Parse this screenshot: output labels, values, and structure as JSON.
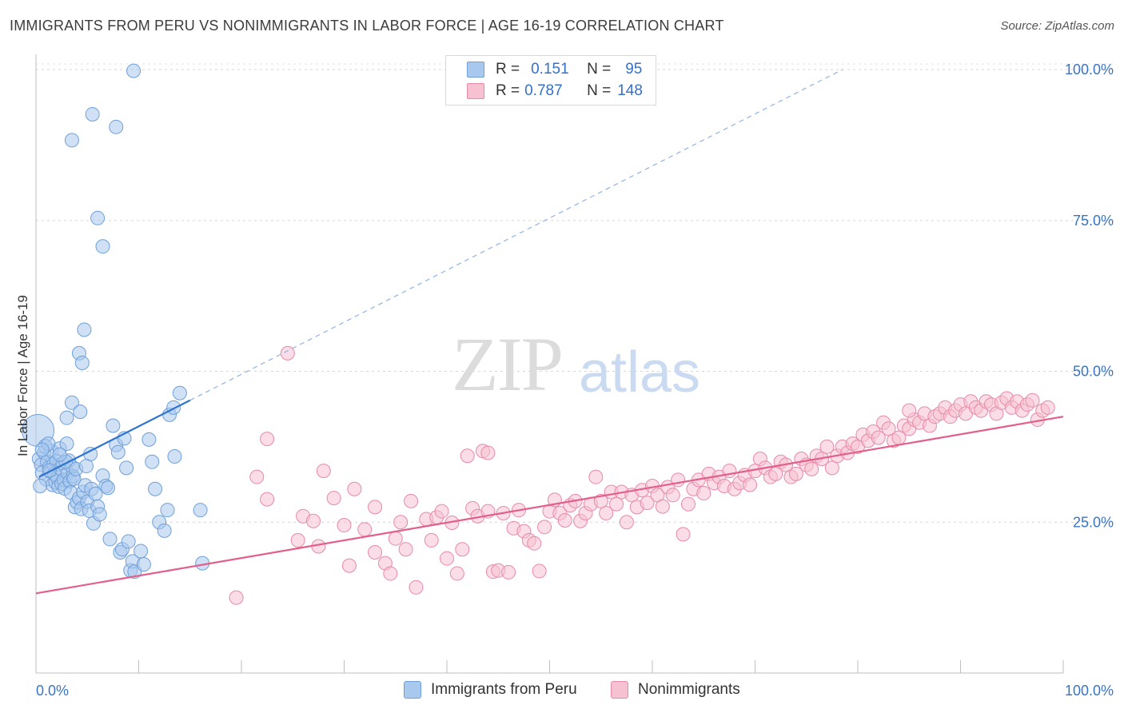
{
  "title": "IMMIGRANTS FROM PERU VS NONIMMIGRANTS IN LABOR FORCE | AGE 16-19 CORRELATION CHART",
  "source": "Source: ZipAtlas.com",
  "watermark": {
    "zip": "ZIP",
    "atlas": "atlas"
  },
  "stats": {
    "r_label": "R =",
    "n_label": "N =",
    "series1": {
      "r": "0.151",
      "n": "95"
    },
    "series2": {
      "r": "0.787",
      "n": "148"
    }
  },
  "legend": {
    "series1": "Immigrants from Peru",
    "series2": "Nonimmigrants"
  },
  "colors": {
    "series1_fill": "#a9c8ee",
    "series1_stroke": "#6fa0d8",
    "series1_line": "#2f74cf",
    "series2_fill": "#f6c1d1",
    "series2_stroke": "#e88aa8",
    "series2_line": "#e25f8a",
    "tick_label": "#3a74c4"
  },
  "chart_data": {
    "type": "scatter",
    "title": "IMMIGRANTS FROM PERU VS NONIMMIGRANTS IN LABOR FORCE | AGE 16-19 CORRELATION CHART",
    "xlabel": "",
    "ylabel": "In Labor Force | Age 16-19",
    "xlim": [
      0,
      100
    ],
    "ylim": [
      0,
      102
    ],
    "x_tick_labels": [
      "0.0%",
      "100.0%"
    ],
    "y_ticks": [
      25,
      50,
      75,
      100
    ],
    "y_tick_labels": [
      "25.0%",
      "50.0%",
      "75.0%",
      "100.0%"
    ],
    "grid": true,
    "legend_position": "bottom-center",
    "series": [
      {
        "name": "Immigrants from Peru",
        "points": [
          [
            0.3,
            35.5
          ],
          [
            0.5,
            34.5
          ],
          [
            0.6,
            33.2
          ],
          [
            0.8,
            36.5
          ],
          [
            1.0,
            32.1
          ],
          [
            1.1,
            35.0
          ],
          [
            1.3,
            34.1
          ],
          [
            1.4,
            33.4
          ],
          [
            1.5,
            36.8
          ],
          [
            1.6,
            31.2
          ],
          [
            1.7,
            34.6
          ],
          [
            1.8,
            33.0
          ],
          [
            1.9,
            31.6
          ],
          [
            2.0,
            35.1
          ],
          [
            2.1,
            32.4
          ],
          [
            2.2,
            30.9
          ],
          [
            2.3,
            37.2
          ],
          [
            2.4,
            33.9
          ],
          [
            2.5,
            31.4
          ],
          [
            2.6,
            34.8
          ],
          [
            2.7,
            32.0
          ],
          [
            2.8,
            30.6
          ],
          [
            3.0,
            38.0
          ],
          [
            3.1,
            33.1
          ],
          [
            3.2,
            35.2
          ],
          [
            3.3,
            31.8
          ],
          [
            3.4,
            29.9
          ],
          [
            3.5,
            34.2
          ],
          [
            3.6,
            32.6
          ],
          [
            0.2,
            40.2
          ],
          [
            0.4,
            31.0
          ],
          [
            0.9,
            37.6
          ],
          [
            1.2,
            38.0
          ],
          [
            2.9,
            35.0
          ],
          [
            3.7,
            32.2
          ],
          [
            3.8,
            27.5
          ],
          [
            4.0,
            28.3
          ],
          [
            4.2,
            29.0
          ],
          [
            4.4,
            27.2
          ],
          [
            4.6,
            30.0
          ],
          [
            4.8,
            31.1
          ],
          [
            5.0,
            28.4
          ],
          [
            5.2,
            26.9
          ],
          [
            5.3,
            36.3
          ],
          [
            5.4,
            30.5
          ],
          [
            5.6,
            24.8
          ],
          [
            5.8,
            29.7
          ],
          [
            6.0,
            27.6
          ],
          [
            6.2,
            26.3
          ],
          [
            6.5,
            32.7
          ],
          [
            6.8,
            31.0
          ],
          [
            7.0,
            30.7
          ],
          [
            7.2,
            22.2
          ],
          [
            7.5,
            41.0
          ],
          [
            7.8,
            37.8
          ],
          [
            8.0,
            36.6
          ],
          [
            8.2,
            20.0
          ],
          [
            8.4,
            20.5
          ],
          [
            8.6,
            38.9
          ],
          [
            8.8,
            34.0
          ],
          [
            9.0,
            21.8
          ],
          [
            9.2,
            17.0
          ],
          [
            9.4,
            18.5
          ],
          [
            9.6,
            16.8
          ],
          [
            10.2,
            20.2
          ],
          [
            10.5,
            18.0
          ],
          [
            11.0,
            38.7
          ],
          [
            11.3,
            35.0
          ],
          [
            11.6,
            30.5
          ],
          [
            12.0,
            25.0
          ],
          [
            12.5,
            23.6
          ],
          [
            12.8,
            27.0
          ],
          [
            13.5,
            35.9
          ],
          [
            16.0,
            27.0
          ],
          [
            16.2,
            18.2
          ],
          [
            3.0,
            42.3
          ],
          [
            3.5,
            44.8
          ],
          [
            4.3,
            43.3
          ],
          [
            13.0,
            42.8
          ],
          [
            13.4,
            44.0
          ],
          [
            14.0,
            46.4
          ],
          [
            4.2,
            53.0
          ],
          [
            4.5,
            51.4
          ],
          [
            4.7,
            56.9
          ],
          [
            6.5,
            70.7
          ],
          [
            6.0,
            75.4
          ],
          [
            3.5,
            88.3
          ],
          [
            5.5,
            92.6
          ],
          [
            7.8,
            90.5
          ],
          [
            9.5,
            99.8
          ],
          [
            1.3,
            33.6
          ],
          [
            2.3,
            36.2
          ],
          [
            0.6,
            37.0
          ],
          [
            3.9,
            33.8
          ],
          [
            4.9,
            34.3
          ]
        ]
      },
      {
        "name": "Nonimmigrants",
        "points": [
          [
            19.5,
            12.5
          ],
          [
            21.5,
            32.5
          ],
          [
            22.5,
            38.8
          ],
          [
            24.5,
            53.0
          ],
          [
            25.5,
            22.0
          ],
          [
            26.0,
            26.0
          ],
          [
            27.0,
            25.2
          ],
          [
            27.5,
            21.0
          ],
          [
            28.0,
            33.5
          ],
          [
            29.0,
            29.0
          ],
          [
            30.0,
            24.5
          ],
          [
            30.5,
            17.8
          ],
          [
            31.0,
            30.5
          ],
          [
            32.0,
            23.8
          ],
          [
            33.0,
            27.5
          ],
          [
            34.0,
            18.2
          ],
          [
            34.5,
            16.5
          ],
          [
            35.0,
            22.3
          ],
          [
            35.5,
            25.0
          ],
          [
            36.0,
            20.5
          ],
          [
            36.5,
            28.5
          ],
          [
            37.0,
            14.2
          ],
          [
            38.0,
            25.5
          ],
          [
            38.5,
            22.0
          ],
          [
            39.0,
            25.8
          ],
          [
            39.5,
            26.8
          ],
          [
            40.0,
            19.0
          ],
          [
            40.5,
            24.9
          ],
          [
            41.0,
            16.5
          ],
          [
            41.5,
            20.5
          ],
          [
            42.0,
            36.0
          ],
          [
            42.5,
            27.3
          ],
          [
            43.0,
            26.0
          ],
          [
            43.5,
            36.8
          ],
          [
            44.0,
            26.8
          ],
          [
            44.5,
            16.8
          ],
          [
            45.0,
            17.0
          ],
          [
            45.5,
            26.5
          ],
          [
            46.0,
            16.7
          ],
          [
            46.5,
            24.0
          ],
          [
            47.0,
            27.0
          ],
          [
            47.5,
            23.5
          ],
          [
            48.0,
            22.0
          ],
          [
            48.5,
            21.5
          ],
          [
            49.0,
            16.9
          ],
          [
            49.5,
            24.2
          ],
          [
            50.0,
            26.8
          ],
          [
            50.5,
            28.7
          ],
          [
            51.0,
            26.5
          ],
          [
            51.5,
            25.3
          ],
          [
            52.0,
            27.8
          ],
          [
            52.5,
            28.5
          ],
          [
            53.0,
            25.2
          ],
          [
            53.5,
            26.5
          ],
          [
            54.0,
            28.0
          ],
          [
            54.5,
            32.5
          ],
          [
            55.0,
            28.5
          ],
          [
            55.5,
            26.5
          ],
          [
            56.0,
            30.0
          ],
          [
            56.5,
            28.0
          ],
          [
            57.0,
            30.0
          ],
          [
            57.5,
            25.0
          ],
          [
            58.0,
            29.5
          ],
          [
            58.5,
            27.5
          ],
          [
            59.0,
            30.3
          ],
          [
            59.5,
            28.2
          ],
          [
            60.0,
            31.0
          ],
          [
            60.5,
            29.5
          ],
          [
            61.0,
            27.6
          ],
          [
            61.5,
            30.8
          ],
          [
            62.0,
            29.5
          ],
          [
            62.5,
            32.0
          ],
          [
            63.0,
            23.0
          ],
          [
            63.5,
            28.0
          ],
          [
            64.0,
            30.5
          ],
          [
            64.5,
            32.0
          ],
          [
            65.0,
            29.8
          ],
          [
            65.5,
            33.0
          ],
          [
            66.0,
            31.5
          ],
          [
            66.5,
            32.5
          ],
          [
            67.0,
            31.0
          ],
          [
            67.5,
            33.5
          ],
          [
            68.0,
            30.5
          ],
          [
            68.5,
            31.5
          ],
          [
            69.0,
            32.8
          ],
          [
            69.5,
            31.2
          ],
          [
            70.0,
            33.5
          ],
          [
            70.5,
            35.5
          ],
          [
            71.0,
            34.0
          ],
          [
            71.5,
            32.5
          ],
          [
            72.0,
            33.0
          ],
          [
            72.5,
            35.0
          ],
          [
            73.0,
            34.5
          ],
          [
            73.5,
            32.5
          ],
          [
            74.0,
            33.0
          ],
          [
            74.5,
            35.5
          ],
          [
            75.0,
            34.5
          ],
          [
            75.5,
            33.8
          ],
          [
            76.0,
            36.0
          ],
          [
            76.5,
            35.5
          ],
          [
            77.0,
            37.5
          ],
          [
            77.5,
            34.0
          ],
          [
            78.0,
            36.0
          ],
          [
            78.5,
            37.5
          ],
          [
            79.0,
            36.5
          ],
          [
            79.5,
            38.0
          ],
          [
            80.0,
            37.5
          ],
          [
            80.5,
            39.5
          ],
          [
            81.0,
            38.5
          ],
          [
            81.5,
            40.0
          ],
          [
            82.0,
            39.0
          ],
          [
            82.5,
            41.5
          ],
          [
            83.0,
            40.5
          ],
          [
            83.5,
            38.5
          ],
          [
            84.0,
            39.0
          ],
          [
            84.5,
            41.0
          ],
          [
            85.0,
            40.5
          ],
          [
            85.5,
            42.0
          ],
          [
            86.0,
            41.5
          ],
          [
            86.5,
            43.0
          ],
          [
            87.0,
            41.0
          ],
          [
            87.5,
            42.5
          ],
          [
            88.0,
            43.0
          ],
          [
            88.5,
            44.0
          ],
          [
            89.0,
            42.5
          ],
          [
            89.5,
            43.5
          ],
          [
            90.0,
            44.5
          ],
          [
            90.5,
            43.0
          ],
          [
            91.0,
            45.0
          ],
          [
            91.5,
            44.0
          ],
          [
            92.0,
            43.5
          ],
          [
            92.5,
            45.0
          ],
          [
            93.0,
            44.5
          ],
          [
            93.5,
            43.0
          ],
          [
            94.0,
            44.8
          ],
          [
            94.5,
            45.5
          ],
          [
            95.0,
            44.0
          ],
          [
            95.5,
            45.0
          ],
          [
            96.0,
            43.5
          ],
          [
            96.5,
            44.5
          ],
          [
            97.0,
            45.2
          ],
          [
            97.5,
            42.0
          ],
          [
            98.0,
            43.5
          ],
          [
            98.5,
            44.0
          ],
          [
            22.5,
            28.8
          ],
          [
            33.0,
            20.0
          ],
          [
            44.0,
            36.5
          ],
          [
            85.0,
            43.5
          ]
        ]
      }
    ],
    "trend_lines": [
      {
        "series": "Immigrants from Peru",
        "solid": [
          [
            0.3,
            32.5
          ],
          [
            15.0,
            45.2
          ]
        ],
        "dashed": [
          [
            15.0,
            45.2
          ],
          [
            78.5,
            100.0
          ]
        ]
      },
      {
        "series": "Nonimmigrants",
        "solid": [
          [
            0,
            13.2
          ],
          [
            100,
            42.5
          ]
        ]
      }
    ]
  }
}
